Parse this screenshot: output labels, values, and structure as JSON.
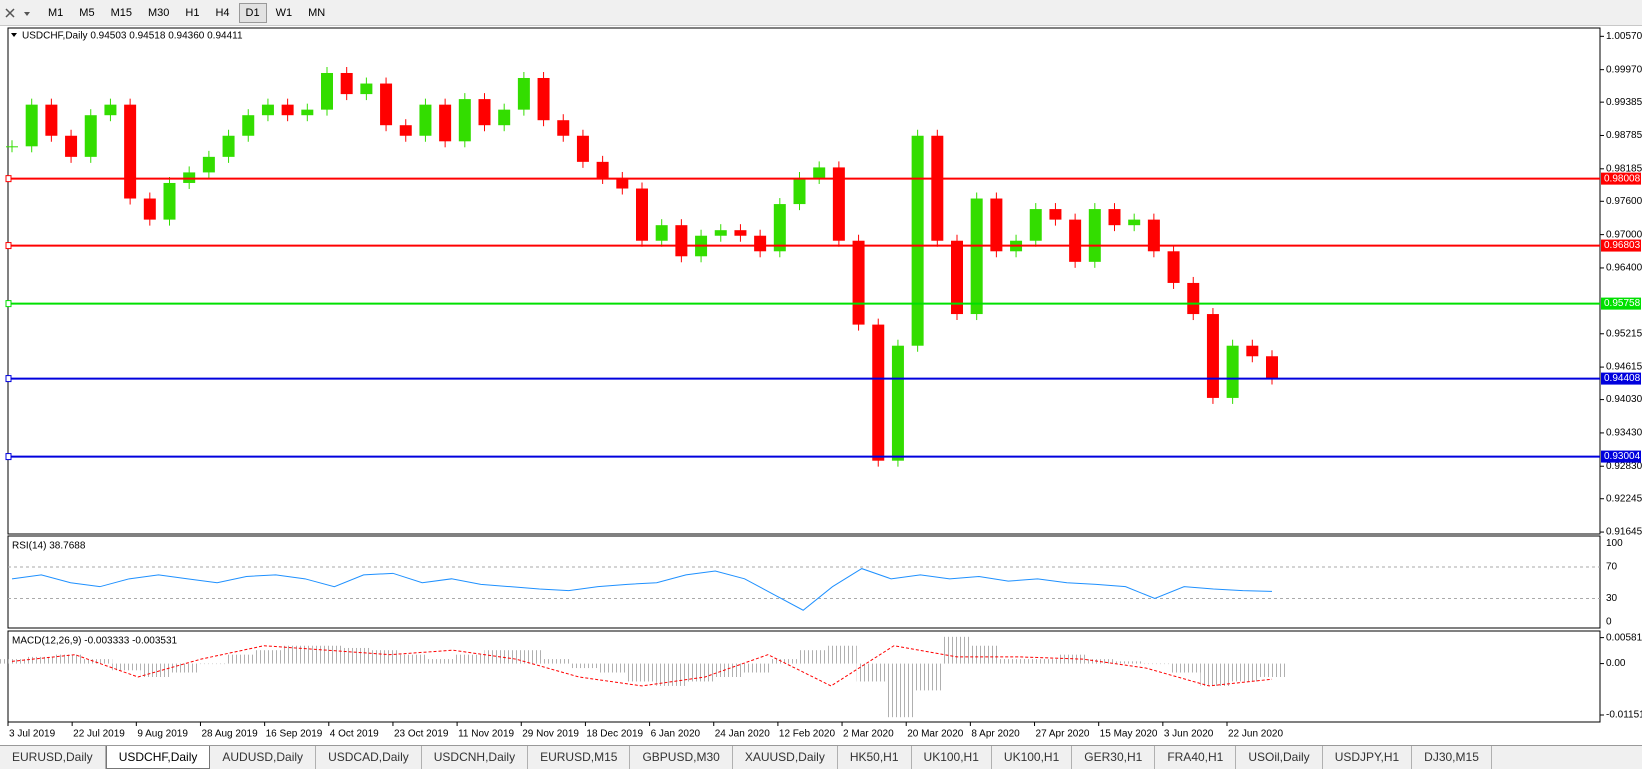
{
  "toolbar": {
    "timeframes": [
      "M1",
      "M5",
      "M15",
      "M30",
      "H1",
      "H4",
      "D1",
      "W1",
      "MN"
    ]
  },
  "chart": {
    "header": "USDCHF,Daily  0.94503 0.94518 0.94360 0.94411",
    "ylim": [
      0.9161,
      1.0072
    ],
    "price_ticks": [
      {
        "value": 1.0057,
        "label": "1.00570"
      },
      {
        "value": 0.9997,
        "label": "0.99970"
      },
      0.99385,
      0.98785,
      0.98185,
      {
        "value": 0.976,
        "label": "0.97600"
      },
      {
        "value": 0.97,
        "label": "0.97000"
      },
      {
        "value": 0.964,
        "label": "0.96400"
      },
      0.95215,
      0.94615,
      {
        "value": 0.9403,
        "label": "0.94030"
      },
      {
        "value": 0.9343,
        "label": "0.93430"
      },
      {
        "value": 0.9283,
        "label": "0.92830"
      },
      0.92245,
      0.91645
    ],
    "levels": [
      {
        "value": 0.98008,
        "color": "#ff0000"
      },
      {
        "value": 0.96803,
        "color": "#ff0000"
      },
      {
        "value": 0.95758,
        "color": "#00e000"
      },
      {
        "value": 0.94408,
        "color": "#0000dd"
      },
      {
        "value": 0.93004,
        "color": "#0000dd"
      }
    ],
    "closes": [
      0.9859,
      0.9934,
      0.9878,
      0.984,
      0.9915,
      0.9934,
      0.9765,
      0.9727,
      0.9793,
      0.9812,
      0.984,
      0.9878,
      0.9915,
      0.9934,
      0.9915,
      0.9925,
      0.9991,
      0.9953,
      0.9972,
      0.9897,
      0.9878,
      0.9934,
      0.9868,
      0.9944,
      0.9897,
      0.9925,
      0.9982,
      0.9906,
      0.9878,
      0.9831,
      0.9802,
      0.9783,
      0.9689,
      0.9717,
      0.9661,
      0.9698,
      0.9708,
      0.9698,
      0.967,
      0.9755,
      0.9802,
      0.9821,
      0.9689,
      0.9538,
      0.9293,
      0.95,
      0.9878,
      0.9689,
      0.9557,
      0.9765,
      0.967,
      0.9689,
      0.9746,
      0.9727,
      0.9651,
      0.9746,
      0.9717,
      0.9727,
      0.967,
      0.9613,
      0.9557,
      0.9406,
      0.95,
      0.9481,
      0.9441
    ],
    "dates": [
      "3 Jul 2019",
      "22 Jul 2019",
      "9 Aug 2019",
      "28 Aug 2019",
      "16 Sep 2019",
      "4 Oct 2019",
      "23 Oct 2019",
      "11 Nov 2019",
      "29 Nov 2019",
      "18 Dec 2019",
      "6 Jan 2020",
      "24 Jan 2020",
      "12 Feb 2020",
      "2 Mar 2020",
      "20 Mar 2020",
      "8 Apr 2020",
      "27 Apr 2020",
      "15 May 2020",
      "3 Jun 2020",
      "22 Jun 2020"
    ]
  },
  "rsi": {
    "title": "RSI(14) 38.7688",
    "ylim": [
      -7.6,
      109.5
    ],
    "yticks": [
      100,
      70,
      30,
      0
    ],
    "values": [
      55,
      60,
      50,
      45,
      55,
      60,
      55,
      50,
      58,
      60,
      55,
      45,
      60,
      62,
      50,
      55,
      48,
      45,
      42,
      40,
      45,
      48,
      50,
      60,
      65,
      55,
      35,
      15,
      45,
      68,
      55,
      60,
      55,
      58,
      52,
      55,
      50,
      48,
      45,
      30,
      45,
      42,
      40,
      39
    ]
  },
  "macd": {
    "title": "MACD(12,26,9) -0.003333 -0.003531",
    "ylim": [
      -0.01308,
      0.0073
    ],
    "yticks": [
      0.005818,
      {
        "value": 0,
        "label": "0.00"
      },
      -0.01151
    ],
    "histogram": [
      0.001,
      0.0015,
      0.002,
      0.001,
      -0.0015,
      -0.003,
      -0.002,
      0,
      0.002,
      0.003,
      0.004,
      0.004,
      0.0035,
      0.003,
      0.002,
      0.001,
      0.002,
      0.003,
      0.003,
      0.001,
      -0.001,
      -0.002,
      -0.004,
      -0.005,
      -0.004,
      -0.003,
      -0.002,
      0.001,
      0.003,
      0.004,
      -0.004,
      -0.012,
      -0.006,
      0.006,
      0.004,
      0.001,
      0.001,
      0.002,
      0.001,
      0.0005,
      0,
      -0.002,
      -0.005,
      -0.004,
      -0.003
    ],
    "signal": [
      0.0005,
      0.002,
      -0.003,
      0.001,
      0.004,
      0.003,
      0.002,
      0.003,
      0.001,
      -0.003,
      -0.005,
      -0.003,
      0.002,
      -0.005,
      0.004,
      0.0015,
      0.0015,
      0.001,
      -0.001,
      -0.005,
      -0.0035
    ]
  },
  "tabs": [
    "EURUSD,Daily",
    "USDCHF,Daily",
    "AUDUSD,Daily",
    "USDCAD,Daily",
    "USDCNH,Daily",
    "EURUSD,M15",
    "GBPUSD,M30",
    "XAUUSD,Daily",
    "HK50,H1",
    "UK100,H1",
    "UK100,H1",
    "GER30,H1",
    "FRA40,H1",
    "USOil,Daily",
    "USDJPY,H1",
    "DJ30,M15"
  ]
}
